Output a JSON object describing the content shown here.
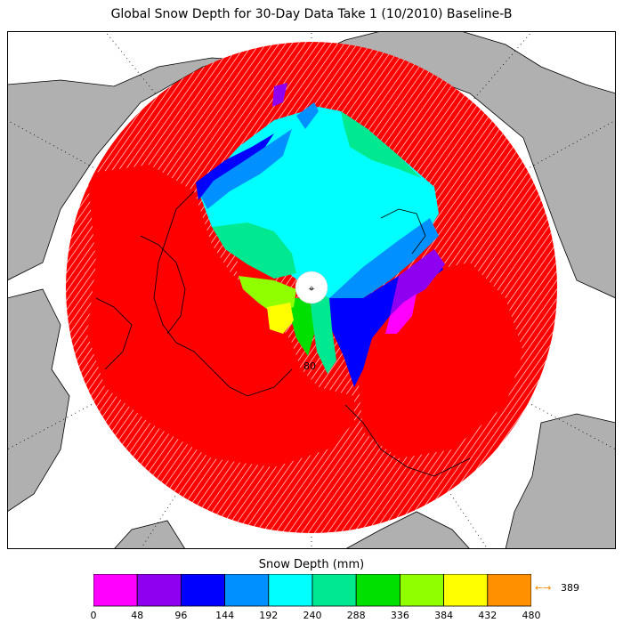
{
  "title": "Global Snow Depth for 30-Day Data Take 1 (10/2010) Baseline-B",
  "map": {
    "projection": "north-polar-stereographic",
    "pole_marker": "⌖",
    "lat_label": "80",
    "colors": {
      "ocean": "#ffffff",
      "land_uncovered": "#b0b0b0",
      "no_data_hatch": "#ff0000",
      "coast": "#000000",
      "graticule": "#000000"
    }
  },
  "colorbar": {
    "label": "Snow Depth (mm)",
    "ticks": [
      "0",
      "48",
      "96",
      "144",
      "192",
      "240",
      "288",
      "336",
      "384",
      "432",
      "480"
    ],
    "colors": [
      "#ff00ff",
      "#9000f0",
      "#0000ff",
      "#0090ff",
      "#00ffff",
      "#00e890",
      "#00e000",
      "#90ff00",
      "#ffff00",
      "#ff9000"
    ],
    "max_arrow": "←→",
    "max_value": "389"
  },
  "colors": {
    "background": "#ffffff",
    "accent": "#f08c00"
  }
}
